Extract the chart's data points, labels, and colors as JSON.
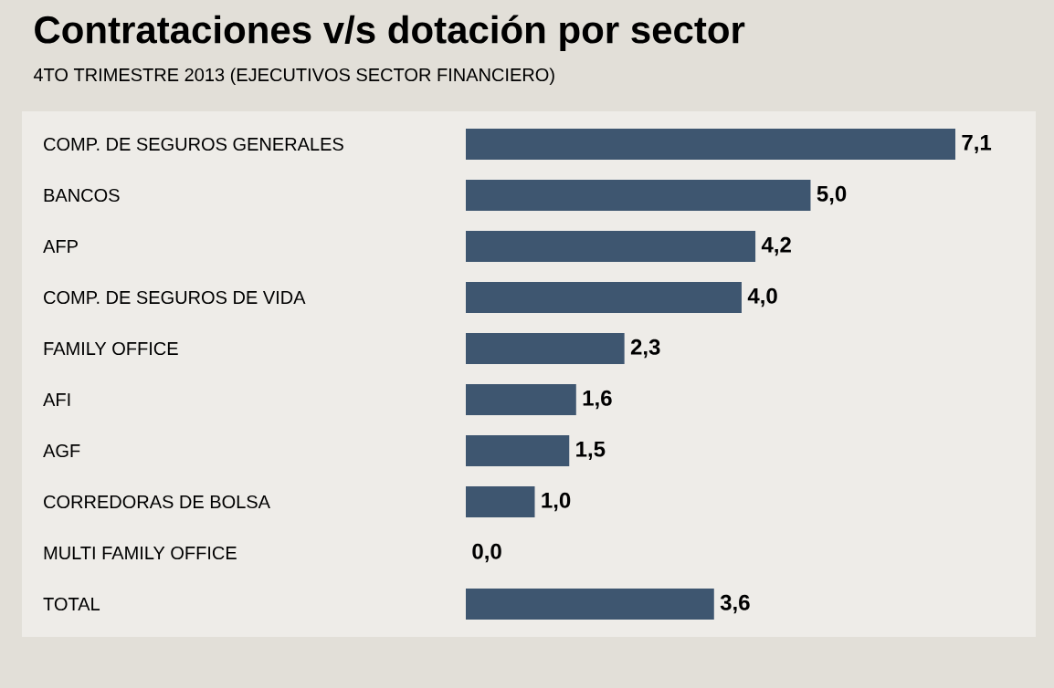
{
  "chart_data": {
    "type": "bar",
    "orientation": "horizontal",
    "title": "Contrataciones v/s dotación por sector",
    "subtitle": "4TO TRIMESTRE 2013 (EJECUTIVOS SECTOR FINANCIERO)",
    "categories": [
      "COMP. DE SEGUROS GENERALES",
      "BANCOS",
      "AFP",
      "COMP. DE SEGUROS DE VIDA",
      "FAMILY OFFICE",
      "AFI",
      "AGF",
      "CORREDORAS DE BOLSA",
      "MULTI FAMILY OFFICE",
      "TOTAL"
    ],
    "values": [
      7.1,
      5.0,
      4.2,
      4.0,
      2.3,
      1.6,
      1.5,
      1.0,
      0.0,
      3.6
    ],
    "value_labels": [
      "7,1",
      "5,0",
      "4,2",
      "4,0",
      "2,3",
      "1,6",
      "1,5",
      "1,0",
      "0,0",
      "3,6"
    ],
    "color": "#3e5670"
  }
}
